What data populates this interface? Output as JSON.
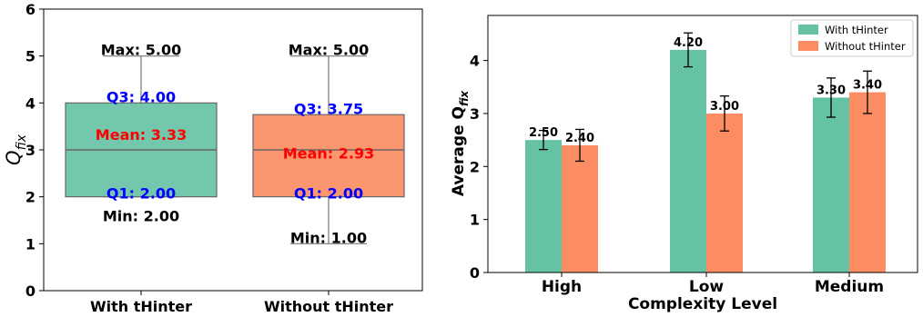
{
  "chart_data": [
    {
      "type": "box",
      "ylabel_main": "Q",
      "ylabel_sub": "fix",
      "ylim": [
        0,
        6
      ],
      "yticks": [
        "0",
        "1",
        "2",
        "3",
        "4",
        "5",
        "6"
      ],
      "categories": [
        "With tHinter",
        "Without tHinter"
      ],
      "colors": {
        "with": "#66c2a5",
        "without": "#fc8d62"
      },
      "boxes": [
        {
          "min": 2.0,
          "q1": 2.0,
          "median": 3.0,
          "q3": 4.0,
          "max": 5.0,
          "mean": 3.33,
          "labels": {
            "max": "Max: 5.00",
            "q3": "Q3: 4.00",
            "mean": "Mean: 3.33",
            "q1": "Q1: 2.00",
            "min": "Min: 2.00"
          }
        },
        {
          "min": 1.0,
          "q1": 2.0,
          "median": 3.0,
          "q3": 3.75,
          "max": 5.0,
          "mean": 2.93,
          "labels": {
            "max": "Max: 5.00",
            "q3": "Q3: 3.75",
            "mean": "Mean: 2.93",
            "q1": "Q1: 2.00",
            "min": "Min: 1.00"
          }
        }
      ]
    },
    {
      "type": "bar",
      "xlabel": "Complexity Level",
      "ylabel_main": "Average Q",
      "ylabel_sub": "fix",
      "ylim": [
        0,
        4.85
      ],
      "yticks": [
        "0",
        "1",
        "2",
        "3",
        "4"
      ],
      "categories": [
        "High",
        "Low",
        "Medium"
      ],
      "legend_position": "top-right",
      "series": [
        {
          "name": "With tHinter",
          "color": "#66c2a5",
          "values": [
            2.5,
            4.2,
            3.3
          ],
          "errors": [
            0.18,
            0.32,
            0.37
          ],
          "labels": [
            "2.50",
            "4.20",
            "3.30"
          ]
        },
        {
          "name": "Without tHinter",
          "color": "#fc8d62",
          "values": [
            2.4,
            3.0,
            3.4
          ],
          "errors": [
            0.3,
            0.33,
            0.4
          ],
          "labels": [
            "2.40",
            "3.00",
            "3.40"
          ]
        }
      ]
    }
  ]
}
